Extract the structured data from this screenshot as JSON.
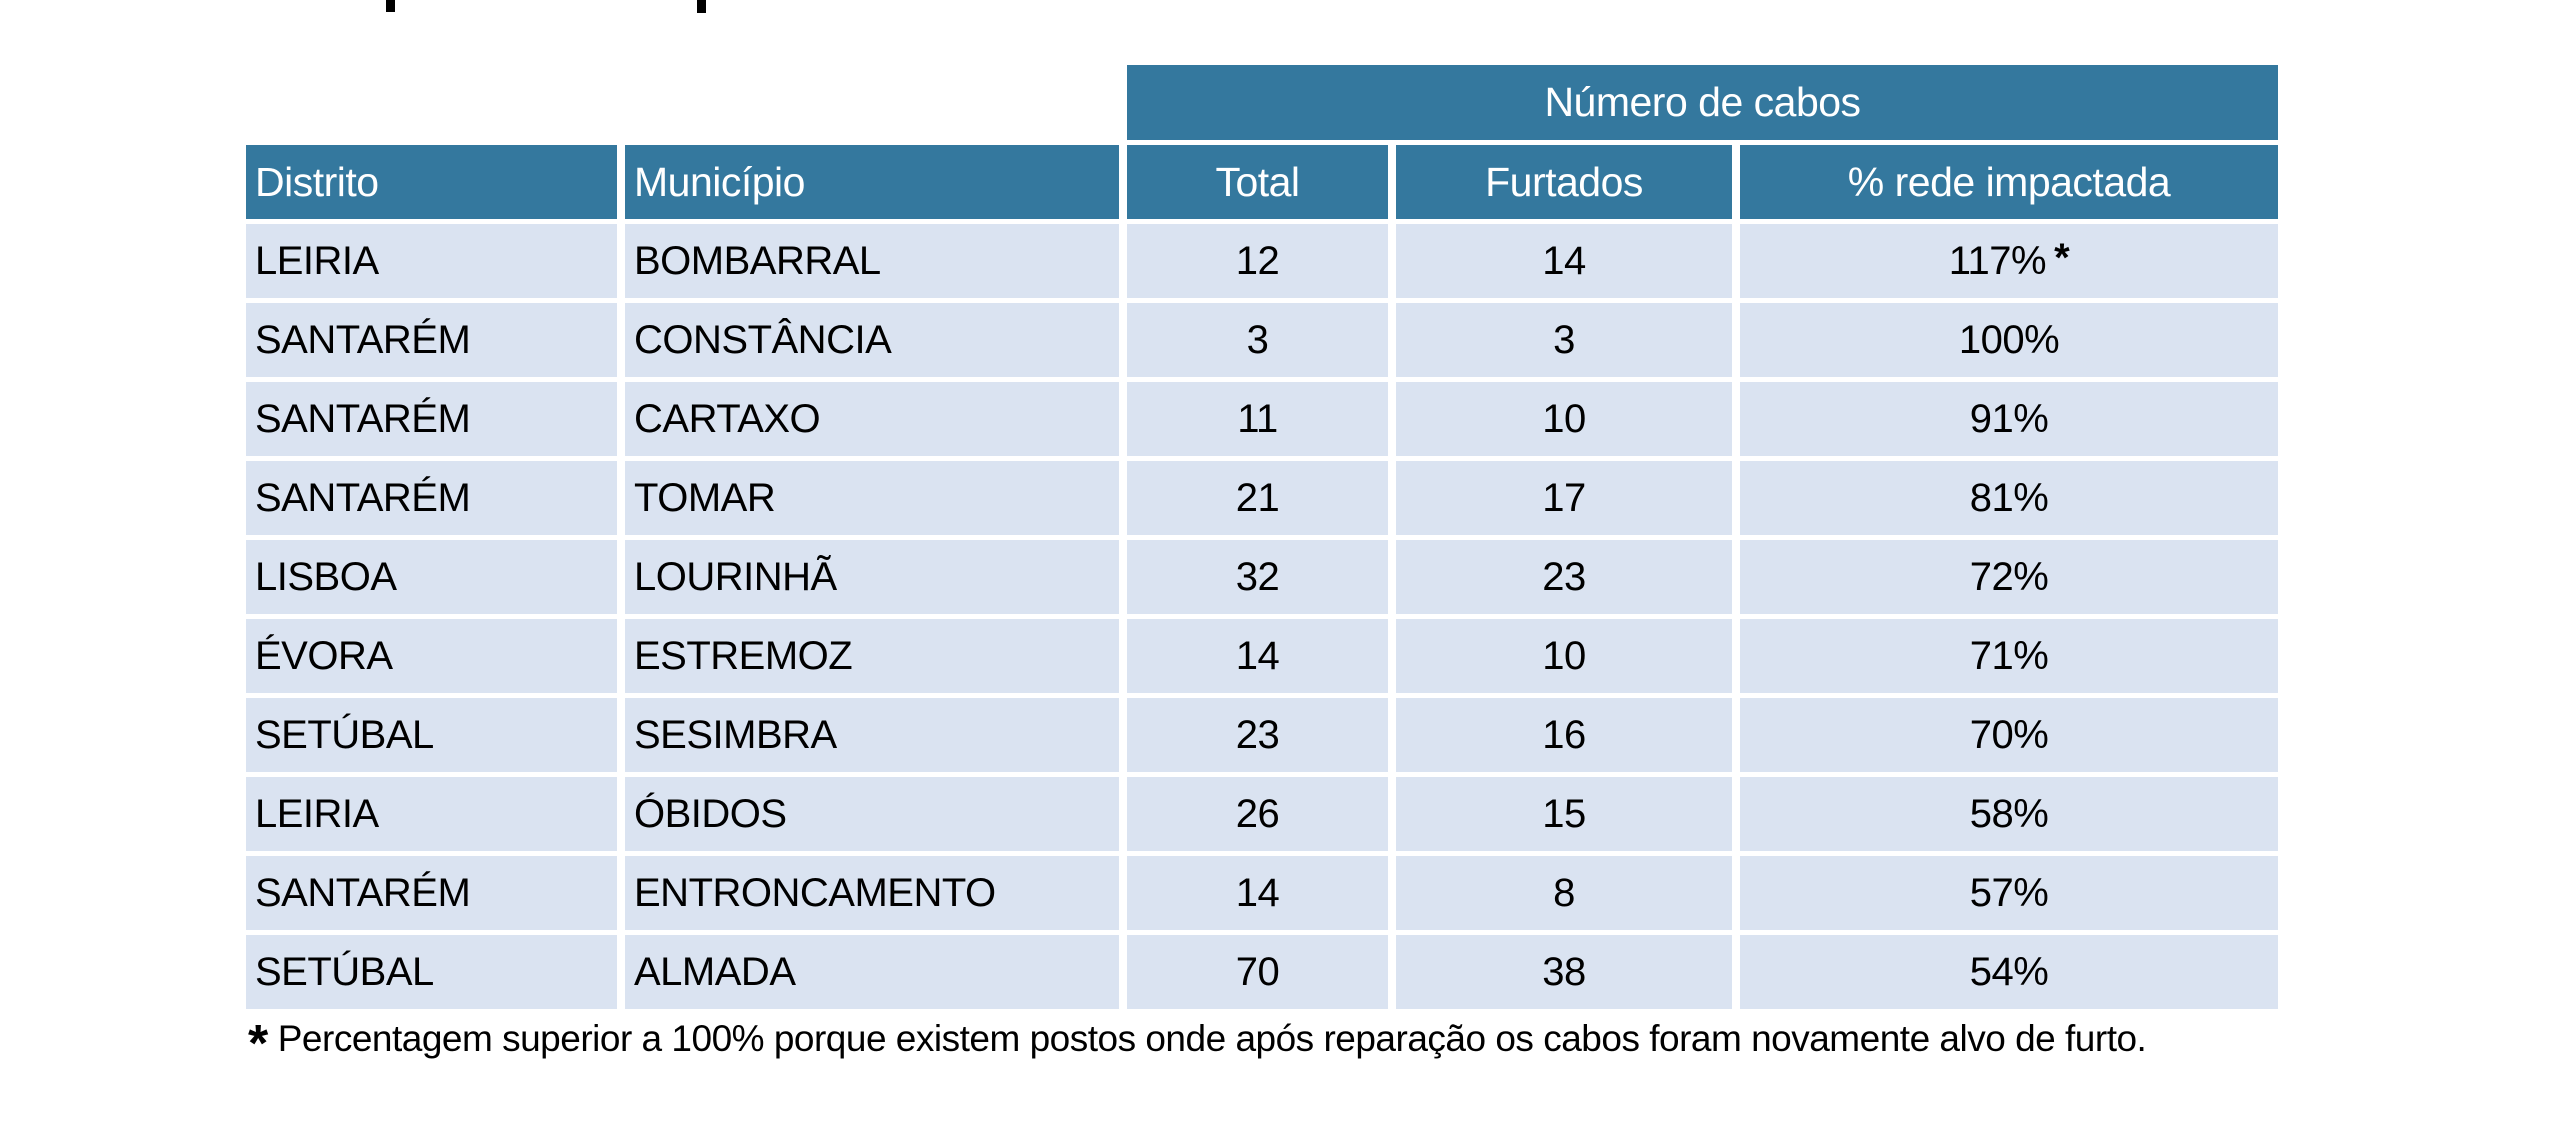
{
  "chart_data": {
    "type": "table",
    "banner": "Número de cabos",
    "columns": [
      "Distrito",
      "Município",
      "Total",
      "Furtados",
      "% rede impactada"
    ],
    "rows": [
      [
        "LEIRIA",
        "BOMBARRAL",
        "12",
        "14",
        "117% *"
      ],
      [
        "SANTARÉM",
        "CONSTÂNCIA",
        "3",
        "3",
        "100%"
      ],
      [
        "SANTARÉM",
        "CARTAXO",
        "11",
        "10",
        "91%"
      ],
      [
        "SANTARÉM",
        "TOMAR",
        "21",
        "17",
        "81%"
      ],
      [
        "LISBOA",
        "LOURINHÃ",
        "32",
        "23",
        "72%"
      ],
      [
        "ÉVORA",
        "ESTREMOZ",
        "14",
        "10",
        "71%"
      ],
      [
        "SETÚBAL",
        "SESIMBRA",
        "23",
        "16",
        "70%"
      ],
      [
        "LEIRIA",
        "ÓBIDOS",
        "26",
        "15",
        "58%"
      ],
      [
        "SANTARÉM",
        "ENTRONCAMENTO",
        "14",
        "8",
        "57%"
      ],
      [
        "SETÚBAL",
        "ALMADA",
        "70",
        "38",
        "54%"
      ]
    ],
    "footnote_marker": "*",
    "footnote": "Percentagem superior a 100% porque existem postos onde após reparação os cabos foram novamente alvo de furto.",
    "colors": {
      "header_bg": "#34789E",
      "row_bg": "#DAE3F1",
      "header_text": "#FFFFFF",
      "body_text": "#000000"
    }
  }
}
